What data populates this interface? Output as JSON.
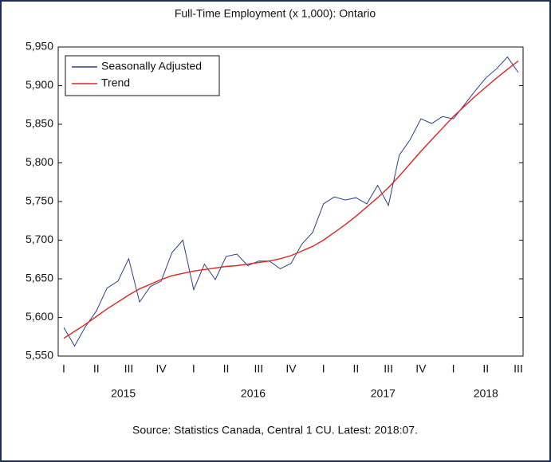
{
  "chart_data": {
    "type": "line",
    "title": "Full-Time Employment (x 1,000): Ontario",
    "source": "Source: Statistics Canada, Central 1 CU. Latest: 2018:07.",
    "categories": [
      "I",
      null,
      null,
      "II",
      null,
      null,
      "III",
      null,
      null,
      "IV",
      null,
      null,
      "I",
      null,
      null,
      "II",
      null,
      null,
      "III",
      null,
      null,
      "IV",
      null,
      null,
      "I",
      null,
      null,
      "II",
      null,
      null,
      "III",
      null,
      null,
      "IV",
      null,
      null,
      "I",
      null,
      null,
      "II",
      null,
      null,
      "III"
    ],
    "year_labels": [
      "2015",
      "2016",
      "2017",
      "2018"
    ],
    "series": [
      {
        "name": "Seasonally Adjusted",
        "color": "#2b3f8c",
        "values": [
          5587,
          5563,
          5588,
          5608,
          5638,
          5647,
          5676,
          5620,
          5640,
          5647,
          5684,
          5700,
          5636,
          5669,
          5649,
          5679,
          5682,
          5667,
          5673,
          5673,
          5663,
          5670,
          5695,
          5710,
          5747,
          5756,
          5752,
          5755,
          5747,
          5771,
          5745,
          5810,
          5830,
          5857,
          5851,
          5860,
          5857,
          5875,
          5893,
          5910,
          5922,
          5937,
          5917
        ]
      },
      {
        "name": "Trend",
        "color": "#e02424",
        "values": [
          5573,
          5582,
          5591,
          5601,
          5611,
          5620,
          5629,
          5637,
          5643,
          5649,
          5654,
          5657,
          5660,
          5662,
          5664,
          5666,
          5667,
          5669,
          5671,
          5673,
          5676,
          5680,
          5686,
          5692,
          5700,
          5710,
          5720,
          5731,
          5743,
          5755,
          5768,
          5783,
          5799,
          5815,
          5830,
          5845,
          5860,
          5873,
          5886,
          5898,
          5910,
          5921,
          5932
        ]
      }
    ],
    "ylim": [
      5550,
      5950
    ],
    "yticks": [
      {
        "value": 5550,
        "label": "5,550"
      },
      {
        "value": 5600,
        "label": "5,600"
      },
      {
        "value": 5650,
        "label": "5,650"
      },
      {
        "value": 5700,
        "label": "5,700"
      },
      {
        "value": 5750,
        "label": "5,750"
      },
      {
        "value": 5800,
        "label": "5,800"
      },
      {
        "value": 5850,
        "label": "5,850"
      },
      {
        "value": 5900,
        "label": "5,900"
      },
      {
        "value": 5950,
        "label": "5,950"
      }
    ],
    "legend": "upper left",
    "grid": false
  }
}
